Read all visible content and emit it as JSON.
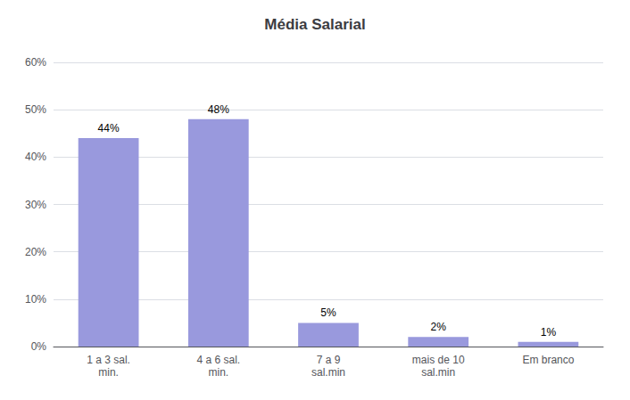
{
  "chart_data": {
    "type": "bar",
    "title": "Média Salarial",
    "categories": [
      "1 a 3 sal.\nmin.",
      "4 a 6 sal.\nmin.",
      "7 a 9\nsal.min",
      "mais de 10\nsal.min",
      "Em branco"
    ],
    "values": [
      44,
      48,
      5,
      2,
      1
    ],
    "value_labels": [
      "44%",
      "48%",
      "5%",
      "2%",
      "1%"
    ],
    "data_labels": true,
    "color": "#9999DD",
    "ylim": [
      0,
      60
    ],
    "yticks": [
      {
        "value": 0,
        "label": "0%"
      },
      {
        "value": 10,
        "label": "10%"
      },
      {
        "value": 20,
        "label": "20%"
      },
      {
        "value": 30,
        "label": "30%"
      },
      {
        "value": 40,
        "label": "40%"
      },
      {
        "value": 50,
        "label": "50%"
      },
      {
        "value": 60,
        "label": "60%"
      }
    ],
    "grid": true
  }
}
